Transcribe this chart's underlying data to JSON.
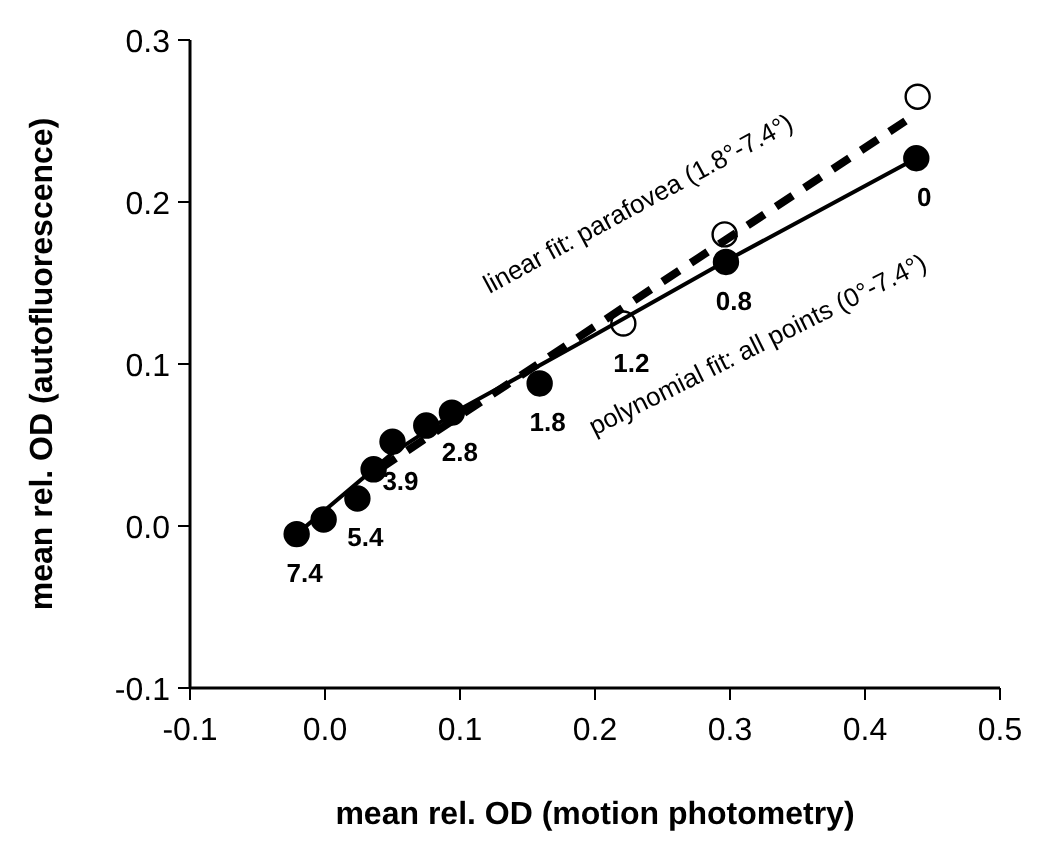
{
  "chart_data": {
    "type": "scatter",
    "xlabel": "mean rel. OD (motion photometry)",
    "ylabel": "mean rel. OD (autofluorescence)",
    "xlim": [
      -0.1,
      0.5
    ],
    "xticks": [
      {
        "value": -0.1,
        "label": "-0.1"
      },
      {
        "value": 0,
        "label": "0.0"
      },
      {
        "value": 0.1,
        "label": "0.1"
      },
      {
        "value": 0.2,
        "label": "0.2"
      },
      {
        "value": 0.3,
        "label": "0.3"
      },
      {
        "value": 0.4,
        "label": "0.4"
      },
      {
        "value": 0.5,
        "label": "0.5"
      }
    ],
    "ylim": [
      -0.1,
      0.3
    ],
    "yticks": [
      {
        "value": -0.1,
        "label": "-0.1"
      },
      {
        "value": 0,
        "label": "0.0"
      },
      {
        "value": 0.1,
        "label": "0.1"
      },
      {
        "value": 0.2,
        "label": "0.2"
      },
      {
        "value": 0.3,
        "label": "0.3"
      }
    ],
    "grid": false,
    "series": [
      {
        "type": "line",
        "color": "#000000",
        "line_style": "dashed",
        "x": [
          0.04,
          0.43
        ],
        "values": [
          0.035,
          0.25
        ]
      },
      {
        "type": "line",
        "color": "#000000",
        "line_style": "solid",
        "x": [
          -0.021,
          0.05,
          0.1,
          0.2,
          0.3,
          0.438
        ],
        "values": [
          -0.005,
          0.045,
          0.072,
          0.118,
          0.165,
          0.227
        ]
      },
      {
        "color": "#000000",
        "marker": "circle",
        "x": [
          -0.021,
          -0.001,
          0.024,
          0.036,
          0.05,
          0.075,
          0.094,
          0.159,
          0.297,
          0.438
        ],
        "values": [
          -0.005,
          0.004,
          0.017,
          0.035,
          0.052,
          0.062,
          0.07,
          0.088,
          0.163,
          0.227
        ]
      },
      {
        "color": "#000000",
        "marker": "circle-open",
        "x": [
          0.221,
          0.296,
          0.439
        ],
        "values": [
          0.125,
          0.18,
          0.265
        ]
      }
    ],
    "annotations": [
      {
        "text": "7.4",
        "x": -0.021,
        "y": -0.005
      },
      {
        "text": "5.4",
        "x": 0.024,
        "y": 0.017
      },
      {
        "text": "3.9",
        "x": 0.05,
        "y": 0.052
      },
      {
        "text": "2.8",
        "x": 0.094,
        "y": 0.07
      },
      {
        "text": "1.8",
        "x": 0.159,
        "y": 0.088
      },
      {
        "text": "1.2",
        "x": 0.221,
        "y": 0.125
      },
      {
        "text": "0.8",
        "x": 0.297,
        "y": 0.163
      },
      {
        "text": "0",
        "x": 0.438,
        "y": 0.227
      },
      "linear fit: parafovea (1.8°-7.4°)",
      "polynomial fit: all points (0°-7.4°)"
    ]
  }
}
